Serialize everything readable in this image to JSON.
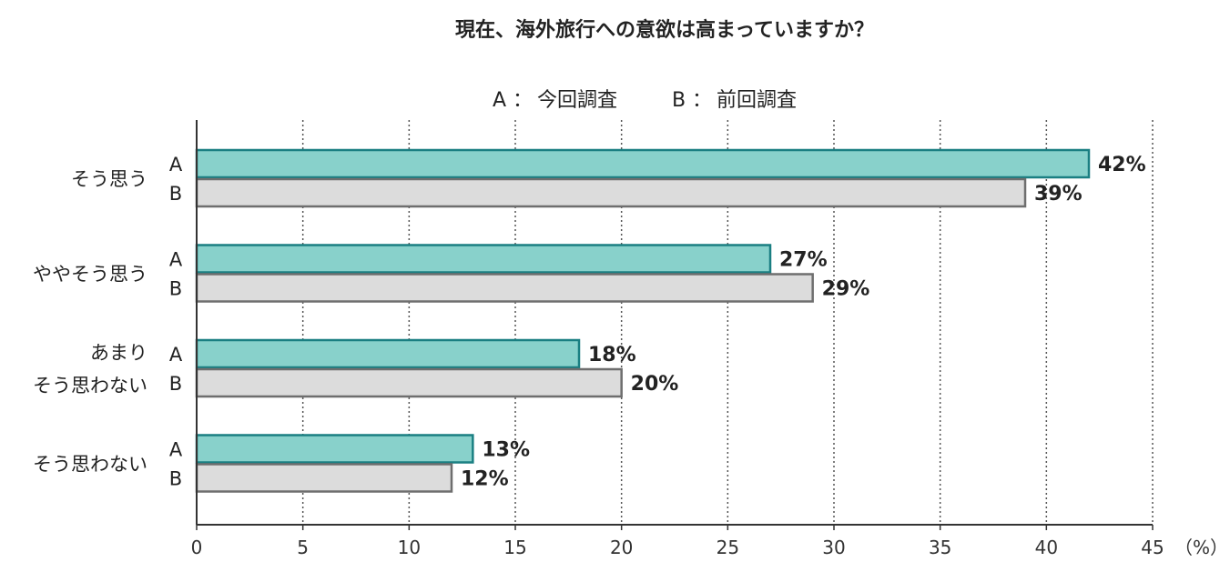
{
  "chart_data": {
    "type": "bar",
    "orientation": "horizontal",
    "title": "現在、海外旅行への意欲は高まっていますか？",
    "legend": {
      "placement": "top",
      "entries": [
        {
          "key": "A",
          "sep": "：",
          "text": "今回調査"
        },
        {
          "key": "B",
          "sep": "：",
          "text": "前回調査"
        }
      ]
    },
    "categories": [
      {
        "lines": [
          "そう思う"
        ]
      },
      {
        "lines": [
          "ややそう思う"
        ]
      },
      {
        "lines": [
          "あまり",
          "そう思わない"
        ]
      },
      {
        "lines": [
          "そう思わない"
        ]
      }
    ],
    "series": [
      {
        "key": "A",
        "values": [
          42,
          27,
          18,
          13
        ],
        "labels": [
          "42%",
          "27%",
          "18%",
          "13%"
        ]
      },
      {
        "key": "B",
        "values": [
          39,
          29,
          20,
          12
        ],
        "labels": [
          "39%",
          "29%",
          "20%",
          "12%"
        ]
      }
    ],
    "xlim": [
      0,
      45
    ],
    "xticks": [
      "0",
      "5",
      "10",
      "15",
      "20",
      "25",
      "30",
      "35",
      "40",
      "45"
    ],
    "xunit": "（%）",
    "grid": "vertical-dotted",
    "colors": {
      "A_fill": "#88d1cb",
      "A_stroke": "#1a7f82",
      "B_fill": "#dcdcdc",
      "B_stroke": "#6e6e6e",
      "A_key": "#1a7f82"
    }
  }
}
